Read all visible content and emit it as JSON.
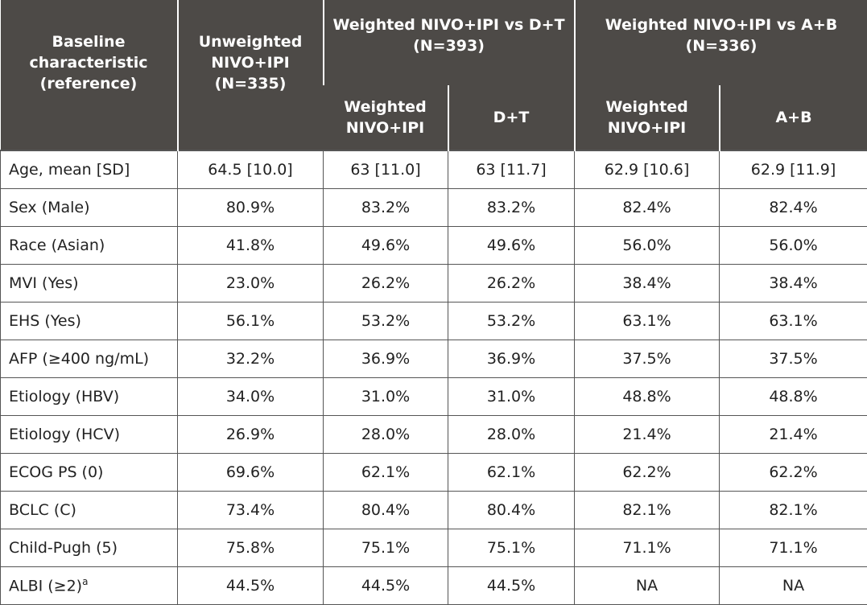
{
  "table": {
    "header": {
      "baseline": "Baseline characteristic (reference)",
      "unweighted": "Unweighted NIVO+IPI (N=335)",
      "group_dt": "Weighted NIVO+IPI vs D+T (N=393)",
      "group_ab": "Weighted NIVO+IPI vs A+B (N=336)",
      "dt_weighted": "Weighted NIVO+IPI",
      "dt_comparator": "D+T",
      "ab_weighted": "Weighted NIVO+IPI",
      "ab_comparator": "A+B"
    },
    "rows": [
      {
        "label": "Age, mean [SD]",
        "cells": [
          "64.5 [10.0]",
          "63 [11.0]",
          "63 [11.7]",
          "62.9 [10.6]",
          "62.9 [11.9]"
        ]
      },
      {
        "label": "Sex (Male)",
        "cells": [
          "80.9%",
          "83.2%",
          "83.2%",
          "82.4%",
          "82.4%"
        ]
      },
      {
        "label": "Race (Asian)",
        "cells": [
          "41.8%",
          "49.6%",
          "49.6%",
          "56.0%",
          "56.0%"
        ]
      },
      {
        "label": "MVI (Yes)",
        "cells": [
          "23.0%",
          "26.2%",
          "26.2%",
          "38.4%",
          "38.4%"
        ]
      },
      {
        "label": "EHS (Yes)",
        "cells": [
          "56.1%",
          "53.2%",
          "53.2%",
          "63.1%",
          "63.1%"
        ]
      },
      {
        "label": "AFP (≥400 ng/mL)",
        "cells": [
          "32.2%",
          "36.9%",
          "36.9%",
          "37.5%",
          "37.5%"
        ]
      },
      {
        "label": "Etiology (HBV)",
        "cells": [
          "34.0%",
          "31.0%",
          "31.0%",
          "48.8%",
          "48.8%"
        ]
      },
      {
        "label": "Etiology (HCV)",
        "cells": [
          "26.9%",
          "28.0%",
          "28.0%",
          "21.4%",
          "21.4%"
        ]
      },
      {
        "label": "ECOG PS (0)",
        "cells": [
          "69.6%",
          "62.1%",
          "62.1%",
          "62.2%",
          "62.2%"
        ]
      },
      {
        "label": "BCLC (C)",
        "cells": [
          "73.4%",
          "80.4%",
          "80.4%",
          "82.1%",
          "82.1%"
        ]
      },
      {
        "label": "Child-Pugh (5)",
        "cells": [
          "75.8%",
          "75.1%",
          "75.1%",
          "71.1%",
          "71.1%"
        ]
      },
      {
        "label": "ALBI (≥2)",
        "sup": "a",
        "cells": [
          "44.5%",
          "44.5%",
          "44.5%",
          "NA",
          "NA"
        ]
      }
    ]
  }
}
